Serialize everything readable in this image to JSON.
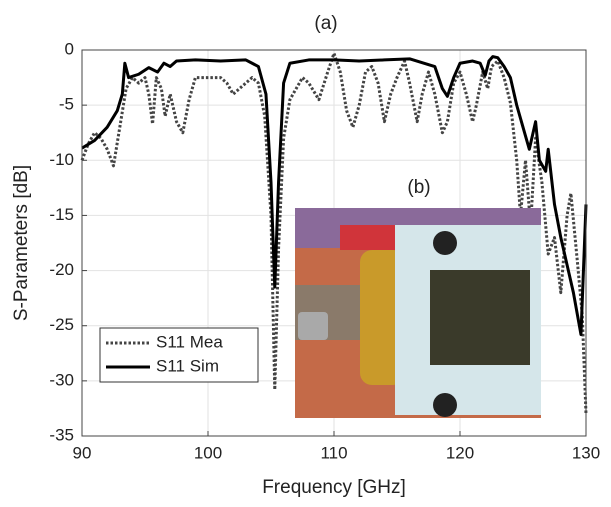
{
  "chart_data": {
    "type": "line",
    "title": "(a)",
    "inset_label": "(b)",
    "xlabel": "Frequency [GHz]",
    "ylabel": "S-Parameters [dB]",
    "xlim": [
      90,
      130
    ],
    "ylim": [
      -35,
      0
    ],
    "xticks": [
      90,
      100,
      110,
      120,
      130
    ],
    "yticks": [
      0,
      -5,
      -10,
      -15,
      -20,
      -25,
      -30,
      -35
    ],
    "grid": true,
    "legend": "lower left",
    "series": [
      {
        "name": "S11 Mea",
        "color": "#444444",
        "linestyle": "dotted",
        "x": [
          90,
          90.5,
          91,
          91.5,
          92,
          92.5,
          93,
          93.5,
          94,
          94.5,
          95,
          95.3,
          95.6,
          95.9,
          96.3,
          96.6,
          97,
          97.5,
          98,
          98.5,
          99,
          100,
          101,
          101.5,
          102,
          102.5,
          103,
          103.5,
          104,
          104.5,
          105,
          105.3,
          105.6,
          106,
          106.5,
          107,
          107.5,
          108,
          108.8,
          109.5,
          110,
          110.5,
          111,
          111.5,
          112,
          112.5,
          113,
          113.5,
          114,
          114.5,
          115,
          115.6,
          116,
          116.6,
          117,
          117.5,
          118,
          118.6,
          119,
          119.5,
          120,
          120.5,
          121,
          121.3,
          121.8,
          122.2,
          122.5,
          123,
          123.5,
          124,
          124.5,
          124.8,
          125.2,
          125.6,
          126,
          126.5,
          127,
          127.5,
          128,
          128.5,
          128.8,
          129.3,
          129.7,
          130
        ],
        "values": [
          -10,
          -8.5,
          -7.5,
          -8,
          -9,
          -10.5,
          -7,
          -3.5,
          -2.5,
          -3,
          -2.5,
          -4,
          -6.7,
          -2.5,
          -3.5,
          -6,
          -4,
          -6.5,
          -7.5,
          -4.5,
          -2.5,
          -2.5,
          -2.5,
          -3,
          -4,
          -3.5,
          -3,
          -2.5,
          -3,
          -6,
          -15,
          -30.8,
          -18,
          -8,
          -4.5,
          -3.5,
          -2.5,
          -3,
          -4.5,
          -2,
          -0.3,
          -2,
          -5.5,
          -7,
          -5,
          -2,
          -1.5,
          -3,
          -6.5,
          -4,
          -2.5,
          -1,
          -3,
          -6.5,
          -4,
          -2,
          -4,
          -7.5,
          -6.5,
          -3,
          -2,
          -4,
          -6.5,
          -5,
          -2,
          -3.5,
          -1.5,
          -1,
          -2.5,
          -4.8,
          -10,
          -15,
          -10,
          -16,
          -8,
          -12,
          -18.5,
          -17,
          -22,
          -15,
          -13,
          -19,
          -24,
          -33
        ]
      },
      {
        "name": "S11 Sim",
        "color": "#000000",
        "linestyle": "solid",
        "x": [
          90,
          91,
          92,
          92.8,
          93.2,
          93.4,
          93.7,
          94.5,
          95.3,
          96,
          96.5,
          97,
          97.5,
          99,
          101,
          103,
          104,
          104.6,
          105,
          105.3,
          105.6,
          106,
          106.5,
          108,
          110,
          112,
          114,
          116,
          118,
          118.6,
          119,
          119.5,
          120,
          121,
          121.6,
          122,
          122.3,
          122.6,
          123,
          123.5,
          124,
          124.5,
          125,
          125.5,
          126,
          126.3,
          126.8,
          127,
          127.5,
          128,
          128.5,
          129,
          129.6,
          130
        ],
        "values": [
          -8.9,
          -8.2,
          -7,
          -5.5,
          -4,
          -1.2,
          -2.5,
          -2.2,
          -1.6,
          -2,
          -1.2,
          -1.5,
          -1,
          -0.9,
          -1,
          -0.9,
          -1.5,
          -4,
          -12,
          -21.5,
          -12,
          -3,
          -1.2,
          -0.9,
          -0.9,
          -1,
          -0.9,
          -0.8,
          -1.5,
          -3.5,
          -4.2,
          -2.5,
          -1.2,
          -1,
          -1.2,
          -2.3,
          -1,
          -0.6,
          -0.7,
          -1.5,
          -2.5,
          -5,
          -7,
          -9,
          -6.5,
          -10,
          -11,
          -9,
          -14,
          -17,
          -19.5,
          -22,
          -25.8,
          -14
        ]
      }
    ]
  }
}
